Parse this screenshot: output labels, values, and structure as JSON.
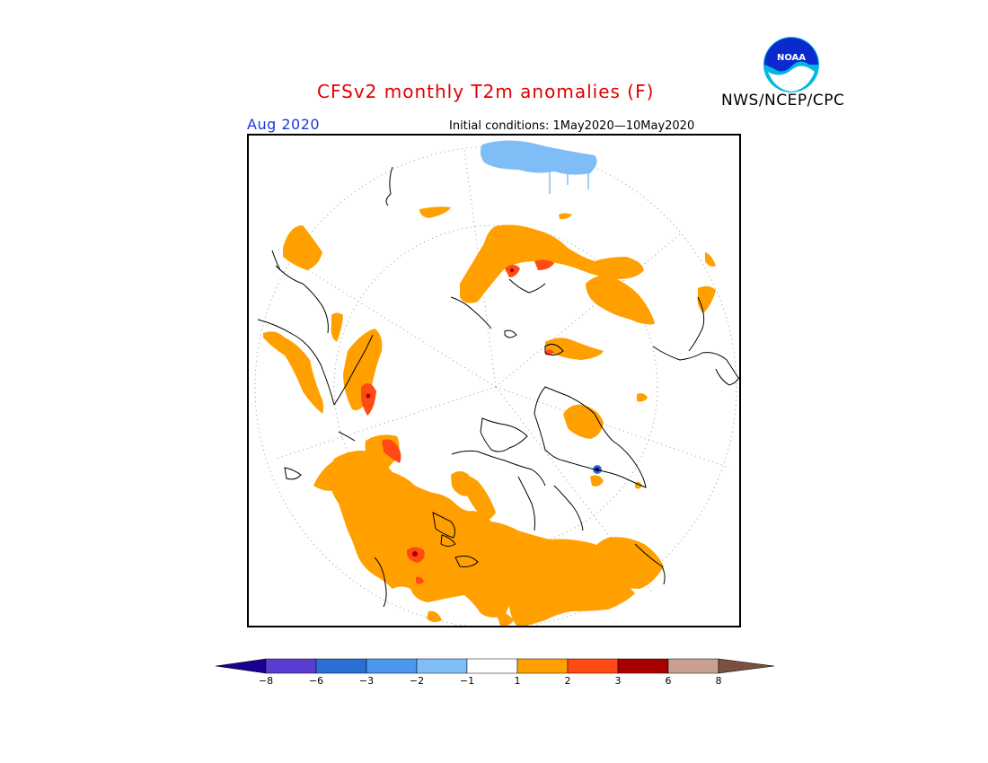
{
  "title": "CFSv2 monthly T2m anomalies (F)",
  "agency": "NWS/NCEP/CPC",
  "logo_text": "NOAA",
  "valid_month": "Aug 2020",
  "initial_conditions": "Initial conditions: 1May2020—10May2020",
  "legend": {
    "tick_labels": [
      "−8",
      "−6",
      "−3",
      "−2",
      "−1",
      "1",
      "2",
      "3",
      "6",
      "8"
    ],
    "colors": [
      "#1a0090",
      "#5a3dd0",
      "#2a6fd6",
      "#4a98ee",
      "#7fbdf6",
      "#ffffff",
      "#ffa000",
      "#ff4a14",
      "#a80000",
      "#c8a090",
      "#7a5040"
    ]
  },
  "colors": {
    "title": "#e00000",
    "month": "#1a3ad8",
    "warm": "#ffa000",
    "hot": "#ff4a14",
    "very_hot": "#a80000",
    "cool": "#7fbdf6",
    "cold": "#2a6fd6"
  }
}
